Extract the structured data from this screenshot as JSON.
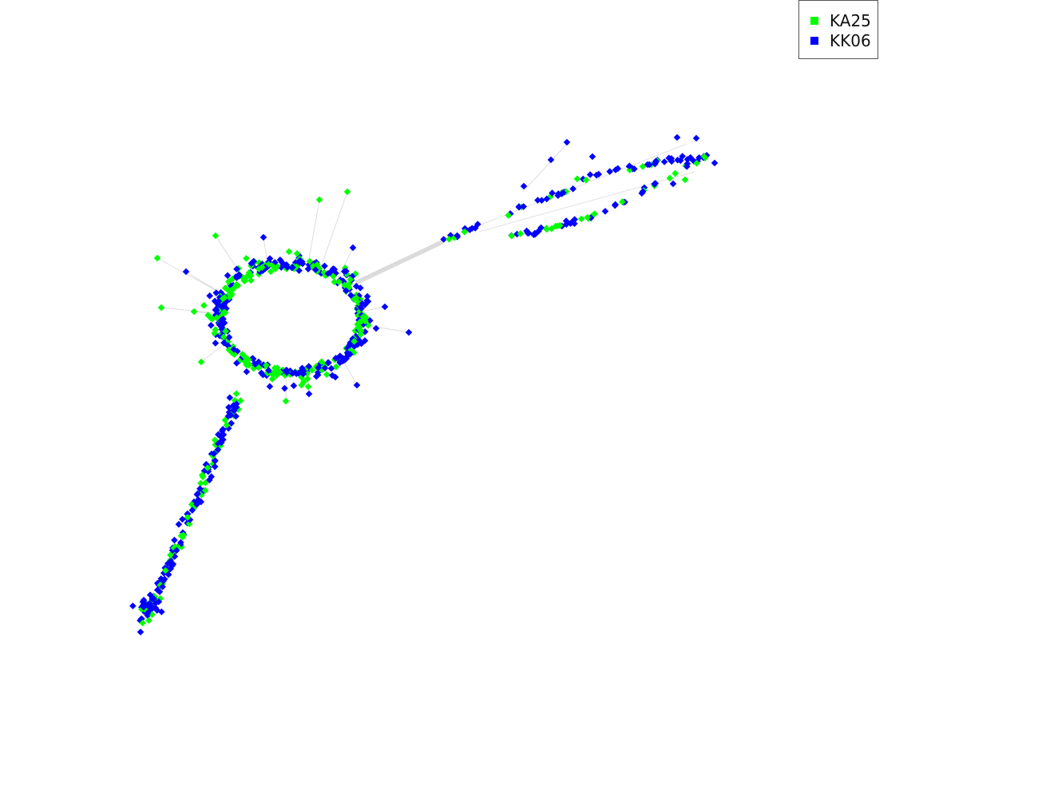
{
  "legend": {
    "items": [
      {
        "label": "KA25",
        "color": "#00ff00"
      },
      {
        "label": "KK06",
        "color": "#0000ff"
      }
    ]
  },
  "graph": {
    "edge_color": "#b0b0b0",
    "node_shape": "diamond"
  }
}
